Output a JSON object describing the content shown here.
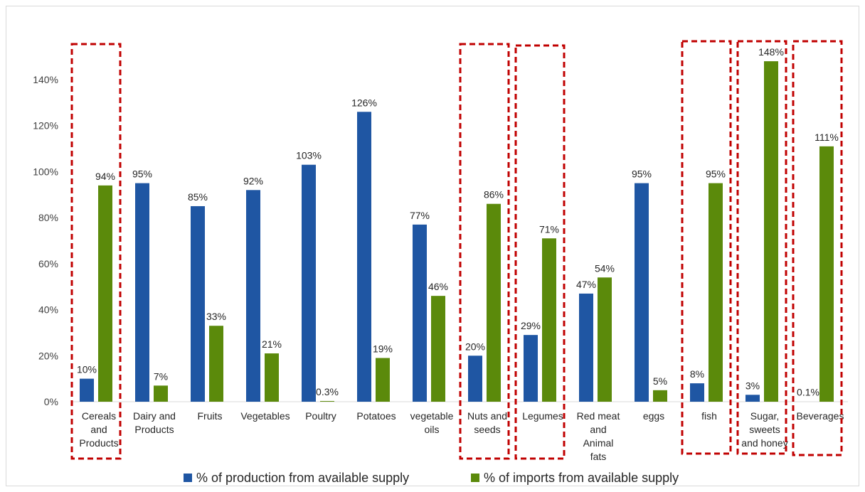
{
  "chart_data": {
    "type": "bar",
    "categories": [
      [
        "Cereals",
        "and",
        "Products"
      ],
      [
        "Dairy  and",
        "Products"
      ],
      [
        "Fruits"
      ],
      [
        "Vegetables"
      ],
      [
        "Poultry"
      ],
      [
        "Potatoes"
      ],
      [
        "vegetable",
        "oils"
      ],
      [
        "Nuts and",
        "seeds"
      ],
      [
        "Legumes"
      ],
      [
        "Red meat",
        "and",
        "Animal",
        "fats"
      ],
      [
        "eggs"
      ],
      [
        "fish"
      ],
      [
        "Sugar,",
        "sweets",
        "and honey"
      ],
      [
        "Beverages"
      ]
    ],
    "series": [
      {
        "name": "% of production from available supply",
        "color": "#1f56a3",
        "values": [
          10,
          95,
          85,
          92,
          103,
          126,
          77,
          20,
          29,
          47,
          95,
          8,
          3,
          0.1
        ],
        "labels": [
          "10%",
          "95%",
          "85%",
          "92%",
          "103%",
          "126%",
          "77%",
          "20%",
          "29%",
          "47%",
          "95%",
          "8%",
          "3%",
          "0.1%"
        ]
      },
      {
        "name": "% of imports from available supply",
        "color": "#5b8a0b",
        "values": [
          94,
          7,
          33,
          21,
          0.3,
          19,
          46,
          86,
          71,
          54,
          5,
          95,
          148,
          111
        ],
        "labels": [
          "94%",
          "7%",
          "33%",
          "21%",
          "0.3%",
          "19%",
          "46%",
          "86%",
          "71%",
          "54%",
          "5%",
          "95%",
          "148%",
          "111%"
        ]
      }
    ],
    "ylim": [
      0,
      140
    ],
    "yticks": [
      "0%",
      "20%",
      "40%",
      "60%",
      "80%",
      "100%",
      "120%",
      "140%"
    ],
    "highlighted_categories": [
      0,
      7,
      8,
      11,
      12,
      13
    ],
    "highlight_color": "#c00000",
    "legend_position": "bottom",
    "grid": false
  }
}
